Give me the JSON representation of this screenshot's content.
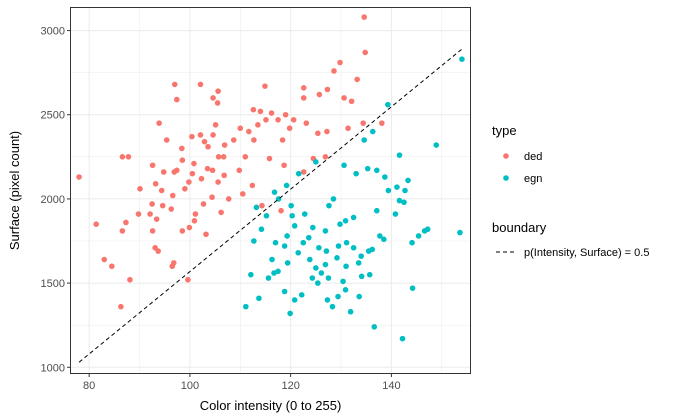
{
  "chart_data": {
    "type": "scatter",
    "xlabel": "Color intensity (0 to 255)",
    "ylabel": "Surface (pixel count)",
    "xlim": [
      76.2,
      155.8
    ],
    "ylim": [
      960,
      3140
    ],
    "x_ticks": [
      "80",
      "100",
      "120",
      "140"
    ],
    "y_ticks": [
      "1000",
      "1500",
      "2000",
      "2500",
      "3000"
    ],
    "grid": true,
    "legend_placement": "right",
    "legend": {
      "title": "type",
      "entries": [
        {
          "label": "ded",
          "color": "#F8766D"
        },
        {
          "label": "egn",
          "color": "#00BFC4"
        }
      ]
    },
    "boundary": {
      "legend_title": "boundary",
      "label": "p(Intensity, Surface) = 0.5",
      "x": [
        78,
        154
      ],
      "y": [
        1030,
        2890
      ]
    },
    "series": [
      {
        "name": "ded",
        "color": "#F8766D",
        "points": [
          [
            134.6,
            3080
          ],
          [
            133.2,
            2710
          ],
          [
            134.8,
            2870
          ],
          [
            129.8,
            2810
          ],
          [
            128.6,
            2760
          ],
          [
            130.6,
            2600
          ],
          [
            132.1,
            2580
          ],
          [
            125.7,
            2620
          ],
          [
            127.3,
            2650
          ],
          [
            122.6,
            2600
          ],
          [
            122.6,
            2660
          ],
          [
            114.9,
            2670
          ],
          [
            105.6,
            2640
          ],
          [
            102.1,
            2680
          ],
          [
            97.0,
            2680
          ],
          [
            104.6,
            2600
          ],
          [
            97.4,
            2590
          ],
          [
            105.5,
            2570
          ],
          [
            112.6,
            2530
          ],
          [
            114.0,
            2520
          ],
          [
            116.2,
            2510
          ],
          [
            119.0,
            2500
          ],
          [
            120.6,
            2470
          ],
          [
            115.1,
            2470
          ],
          [
            117.5,
            2470
          ],
          [
            134.4,
            2450
          ],
          [
            138.1,
            2450
          ],
          [
            113.5,
            2440
          ],
          [
            119.8,
            2420
          ],
          [
            125.4,
            2390
          ],
          [
            127.2,
            2400
          ],
          [
            131.4,
            2420
          ],
          [
            123.1,
            2450
          ],
          [
            93.9,
            2450
          ],
          [
            100.4,
            2370
          ],
          [
            102.1,
            2380
          ],
          [
            104.6,
            2380
          ],
          [
            110.0,
            2420
          ],
          [
            111.7,
            2400
          ],
          [
            105.1,
            2440
          ],
          [
            98.4,
            2300
          ],
          [
            102.9,
            2340
          ],
          [
            103.6,
            2310
          ],
          [
            95.4,
            2350
          ],
          [
            106.9,
            2320
          ],
          [
            108.7,
            2350
          ],
          [
            105.7,
            2250
          ],
          [
            98.5,
            2230
          ],
          [
            100.8,
            2210
          ],
          [
            103.5,
            2180
          ],
          [
            106.7,
            2250
          ],
          [
            111.0,
            2250
          ],
          [
            115.8,
            2240
          ],
          [
            118.7,
            2200
          ],
          [
            124.5,
            2240
          ],
          [
            126.9,
            2250
          ],
          [
            112.7,
            2350
          ],
          [
            118.4,
            2350
          ],
          [
            86.6,
            2250
          ],
          [
            87.8,
            2250
          ],
          [
            92.6,
            2200
          ],
          [
            100.5,
            2150
          ],
          [
            99.8,
            2100
          ],
          [
            102.3,
            2120
          ],
          [
            104.5,
            2170
          ],
          [
            106.8,
            2140
          ],
          [
            109.8,
            2170
          ],
          [
            97.4,
            2170
          ],
          [
            94.8,
            2160
          ],
          [
            99.0,
            2060
          ],
          [
            104.4,
            2010
          ],
          [
            107.7,
            2000
          ],
          [
            102.7,
            1970
          ],
          [
            106.2,
            1920
          ],
          [
            101.1,
            1910
          ],
          [
            96.6,
            2020
          ],
          [
            96.3,
            1940
          ],
          [
            94.6,
            1960
          ],
          [
            93.4,
            1880
          ],
          [
            92.1,
            1910
          ],
          [
            89.8,
            1910
          ],
          [
            92.5,
            1970
          ],
          [
            94.4,
            2050
          ],
          [
            90.1,
            2060
          ],
          [
            93.2,
            2090
          ],
          [
            110.5,
            2030
          ],
          [
            114.3,
            1960
          ],
          [
            118.1,
            1930
          ],
          [
            105.6,
            2100
          ],
          [
            112.4,
            2080
          ],
          [
            78.0,
            2130
          ],
          [
            81.4,
            1850
          ],
          [
            86.6,
            1810
          ],
          [
            87.3,
            1860
          ],
          [
            92.6,
            1810
          ],
          [
            93.1,
            1710
          ],
          [
            93.7,
            1690
          ],
          [
            98.5,
            1810
          ],
          [
            99.9,
            1830
          ],
          [
            100.9,
            1870
          ],
          [
            103.2,
            1790
          ],
          [
            96.8,
            1620
          ],
          [
            96.5,
            1600
          ],
          [
            83.0,
            1640
          ],
          [
            84.5,
            1600
          ],
          [
            88.1,
            1520
          ],
          [
            99.6,
            1520
          ],
          [
            86.3,
            1360
          ],
          [
            96.9,
            2160
          ],
          [
            122.6,
            2160
          ]
        ]
      },
      {
        "name": "egn",
        "color": "#00BFC4",
        "points": [
          [
            154.0,
            2830
          ],
          [
            139.3,
            2560
          ],
          [
            136.3,
            2400
          ],
          [
            134.6,
            2350
          ],
          [
            148.9,
            2320
          ],
          [
            141.6,
            2260
          ],
          [
            135.3,
            2180
          ],
          [
            130.6,
            2200
          ],
          [
            133.0,
            2150
          ],
          [
            137.1,
            2170
          ],
          [
            125.0,
            2220
          ],
          [
            121.6,
            2150
          ],
          [
            119.2,
            2080
          ],
          [
            116.8,
            2040
          ],
          [
            117.6,
            2000
          ],
          [
            138.7,
            2130
          ],
          [
            143.3,
            2110
          ],
          [
            141.1,
            2070
          ],
          [
            142.7,
            2050
          ],
          [
            139.4,
            2050
          ],
          [
            141.6,
            1990
          ],
          [
            142.5,
            1980
          ],
          [
            137.1,
            1930
          ],
          [
            140.8,
            1910
          ],
          [
            145.4,
            1780
          ],
          [
            146.6,
            1810
          ],
          [
            147.2,
            1820
          ],
          [
            153.6,
            1800
          ],
          [
            144.1,
            1740
          ],
          [
            137.7,
            1780
          ],
          [
            138.5,
            1760
          ],
          [
            136.2,
            1700
          ],
          [
            135.5,
            1690
          ],
          [
            128.5,
            2000
          ],
          [
            127.6,
            1960
          ],
          [
            122.8,
            1910
          ],
          [
            130.9,
            1870
          ],
          [
            132.5,
            1890
          ],
          [
            129.8,
            1850
          ],
          [
            126.9,
            1810
          ],
          [
            124.4,
            1830
          ],
          [
            123.6,
            1770
          ],
          [
            120.3,
            1900
          ],
          [
            120.8,
            1840
          ],
          [
            119.3,
            1780
          ],
          [
            122.5,
            1740
          ],
          [
            125.6,
            1710
          ],
          [
            127.1,
            1690
          ],
          [
            129.5,
            1720
          ],
          [
            131.1,
            1740
          ],
          [
            132.5,
            1710
          ],
          [
            134.0,
            1660
          ],
          [
            133.5,
            1620
          ],
          [
            131.0,
            1600
          ],
          [
            129.2,
            1650
          ],
          [
            126.9,
            1610
          ],
          [
            125.0,
            1590
          ],
          [
            123.8,
            1640
          ],
          [
            121.5,
            1680
          ],
          [
            118.8,
            1720
          ],
          [
            117.0,
            1740
          ],
          [
            116.3,
            1640
          ],
          [
            119.4,
            1620
          ],
          [
            114.2,
            1820
          ],
          [
            115.2,
            1900
          ],
          [
            113.2,
            1950
          ],
          [
            120.1,
            1960
          ],
          [
            112.7,
            1750
          ],
          [
            117.5,
            1570
          ],
          [
            115.6,
            1530
          ],
          [
            116.7,
            1560
          ],
          [
            112.1,
            1550
          ],
          [
            111.1,
            1360
          ],
          [
            113.7,
            1410
          ],
          [
            118.8,
            1450
          ],
          [
            120.8,
            1400
          ],
          [
            122.2,
            1430
          ],
          [
            119.9,
            1320
          ],
          [
            124.3,
            1530
          ],
          [
            125.4,
            1500
          ],
          [
            126.1,
            1560
          ],
          [
            127.5,
            1530
          ],
          [
            130.4,
            1510
          ],
          [
            130.9,
            1460
          ],
          [
            129.4,
            1420
          ],
          [
            127.3,
            1400
          ],
          [
            128.3,
            1360
          ],
          [
            134.1,
            1540
          ],
          [
            135.7,
            1550
          ],
          [
            133.6,
            1420
          ],
          [
            131.9,
            1330
          ],
          [
            136.6,
            1240
          ],
          [
            144.2,
            1470
          ],
          [
            142.2,
            1170
          ]
        ]
      }
    ]
  }
}
